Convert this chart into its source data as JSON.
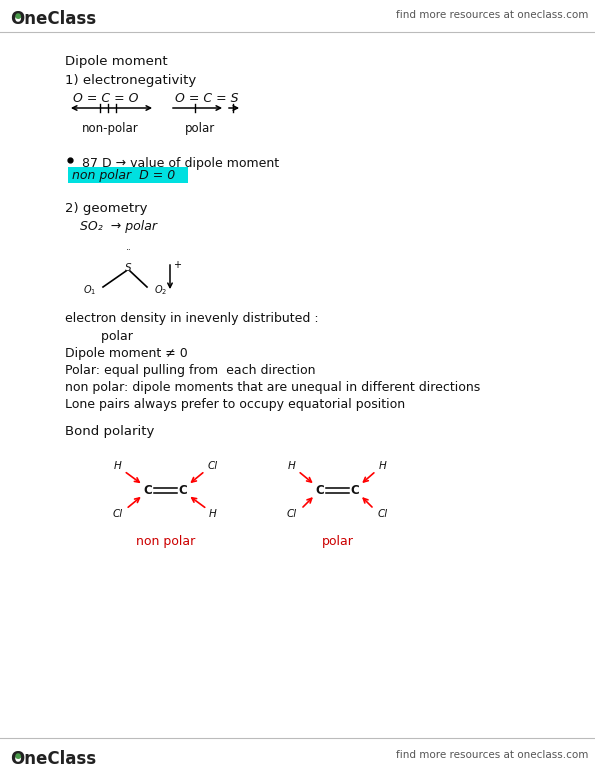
{
  "bg_color": "#ffffff",
  "header_text": "find more resources at oneclass.com",
  "title_text": "Dipole moment",
  "section1": "1) electronegativity",
  "oco_label": "O = C = O",
  "ocs_label": "O = C = S",
  "nonpolar_label": "non-polar",
  "polar_label": "polar",
  "bullet_text": "87 D → value of dipole moment",
  "highlight_text": "non polar  D = 0",
  "highlight_color": "#00e0e0",
  "section2": "2) geometry",
  "so2_text": "SO₂  → polar",
  "electron_text": "electron density in inevenly distributed :",
  "polar_indent": "         polar",
  "dipole_neq": "Dipole moment ≠ 0",
  "polar_equal": "Polar: equal pulling from  each direction",
  "nonpolar_def": "non polar: dipole moments that are unequal in different directions",
  "lone_pairs": "Lone pairs always prefer to occupy equatorial position",
  "bond_polarity": "Bond polarity",
  "nonpolar_red": "non polar",
  "polar_red": "polar",
  "red_color": "#cc0000",
  "footer_text": "find more resources at oneclass.com",
  "oneclass_color": "#222222",
  "green_dot_color": "#4a9a4a"
}
